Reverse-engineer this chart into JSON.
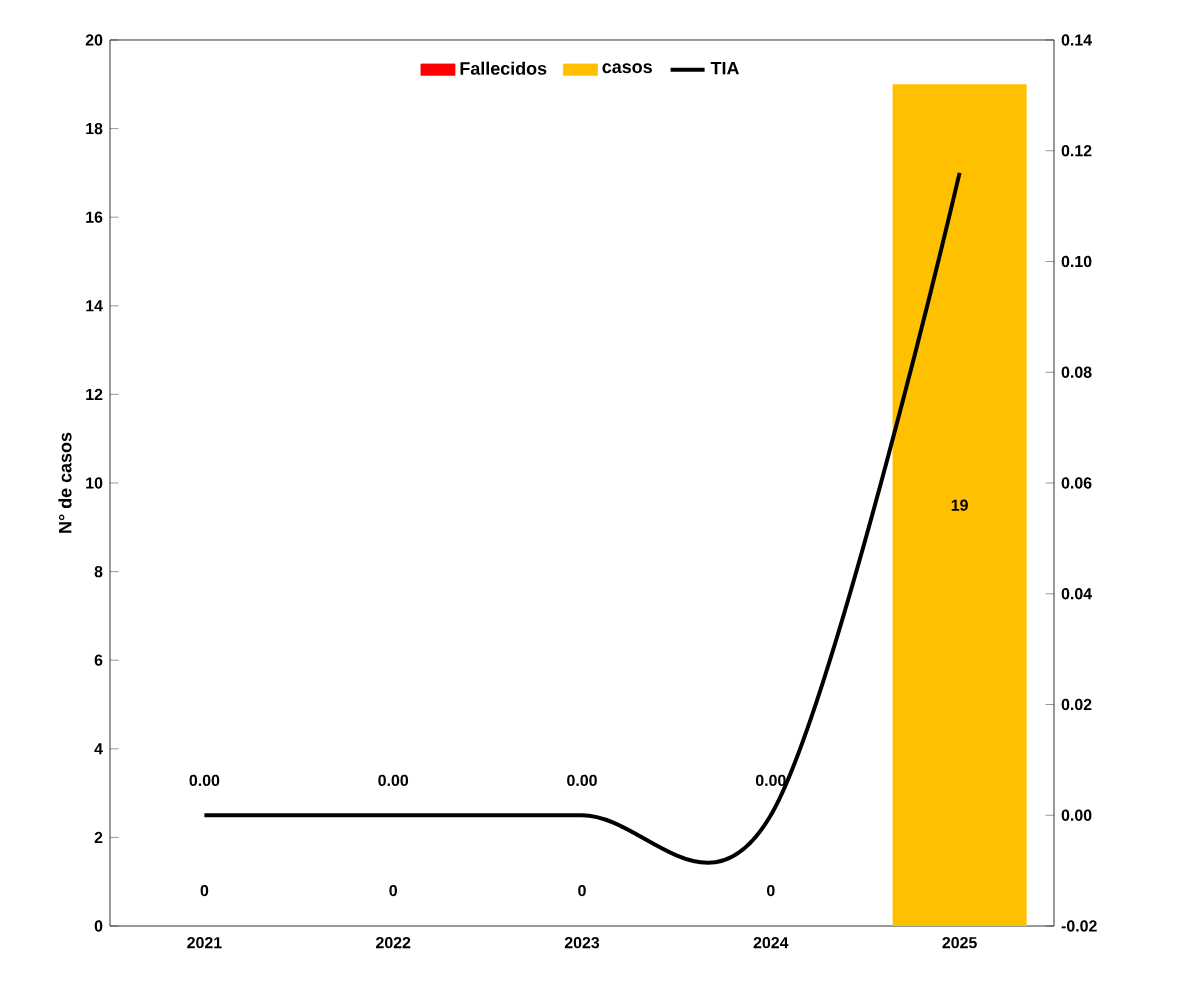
{
  "chart_data": {
    "type": "bar",
    "categories": [
      "2021",
      "2022",
      "2023",
      "2024",
      "2025"
    ],
    "ylabel": "N° de casos",
    "ylim": [
      0,
      20
    ],
    "yticks": [
      0,
      2,
      4,
      6,
      8,
      10,
      12,
      14,
      16,
      18,
      20
    ],
    "y2lim": [
      -0.02,
      0.14
    ],
    "y2ticks": [
      {
        "value": -0.02,
        "label": "-0.02"
      },
      {
        "value": 0,
        "label": "0.00"
      },
      {
        "value": 0.02,
        "label": "0.02"
      },
      {
        "value": 0.04,
        "label": "0.04"
      },
      {
        "value": 0.06,
        "label": "0.06"
      },
      {
        "value": 0.08,
        "label": "0.08"
      },
      {
        "value": 0.1,
        "label": "0.10"
      },
      {
        "value": 0.12,
        "label": "0.12"
      },
      {
        "value": 0.14,
        "label": "0.14"
      }
    ],
    "legend": "top",
    "grid": false,
    "series": [
      {
        "name": "Fallecidos",
        "color": "#ff0000",
        "values": [
          null,
          null,
          null,
          null,
          null
        ]
      },
      {
        "name": "casos",
        "color": "#ffc000",
        "values": [
          0,
          0,
          0,
          0,
          19
        ],
        "data_labels": true
      },
      {
        "name": "TIA",
        "type": "line",
        "axis": "y2",
        "color": "#000000",
        "values": [
          0,
          0,
          0,
          0,
          0.116
        ],
        "value_labels": [
          "0.00",
          "0.00",
          "0.00",
          "0.00",
          null
        ],
        "marker": "none"
      }
    ]
  }
}
